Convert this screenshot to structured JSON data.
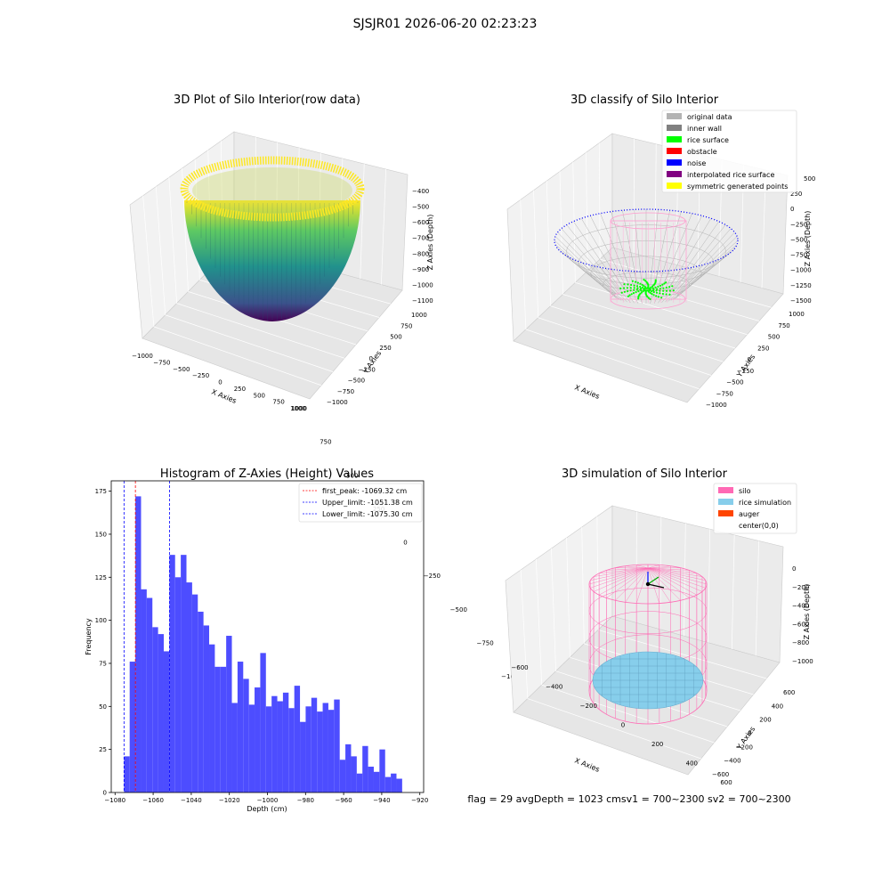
{
  "figure": {
    "suptitle": "SJSJR01 2026-06-20 02:23:23",
    "footer": "flag = 29  avgDepth = 1023 cmsv1 = 700~2300  sv2 = 700~2300"
  },
  "chart_data": [
    {
      "type": "surface3d",
      "title": "3D Plot of Silo Interior(row data)",
      "xlabel": "X Axies",
      "ylabel": "Y Axies",
      "zlabel": "Z Axies (Depth)",
      "xticks": [
        "−1000",
        "−750",
        "−500",
        "−250",
        "0",
        "250",
        "500",
        "750",
        "1000"
      ],
      "yticks": [
        "−1000",
        "−750",
        "−500",
        "−250",
        "0",
        "250",
        "500",
        "750",
        "1000"
      ],
      "zticks": [
        "−400",
        "−500",
        "−600",
        "−700",
        "−800",
        "−900",
        "−1000",
        "−1100"
      ],
      "xlim": [
        -1000,
        1000
      ],
      "ylim": [
        -1000,
        1000
      ],
      "zlim": [
        -1100,
        -400
      ],
      "colormap": "viridis",
      "colors": [
        "#fde725",
        "#5ec962",
        "#21918c",
        "#3b528b",
        "#440154"
      ]
    },
    {
      "type": "scatter3d",
      "title": "3D classify of Silo Interior",
      "xlabel": "X Axies",
      "ylabel": "Y Axies",
      "zlabel": "Z Axies (Depth)",
      "xticks": [
        "−1000",
        "−750",
        "−500",
        "−250",
        "0",
        "250",
        "500",
        "750",
        "1000"
      ],
      "yticks": [
        "−1000",
        "−750",
        "−500",
        "−250",
        "0",
        "250",
        "500",
        "750",
        "1000"
      ],
      "zticks": [
        "250",
        "0",
        "−250",
        "−500",
        "−750",
        "−1000",
        "−1250",
        "−1500"
      ],
      "ztop_partial": "500",
      "legend": {
        "position": "upper-right",
        "entries": [
          {
            "label": "original data",
            "color": "#b3b3b3"
          },
          {
            "label": "inner wall",
            "color": "#808080"
          },
          {
            "label": "rice surface",
            "color": "#00ff00"
          },
          {
            "label": "obstacle",
            "color": "#ff0000"
          },
          {
            "label": "noise",
            "color": "#0000ff"
          },
          {
            "label": "interpolated rice surface",
            "color": "#800080"
          },
          {
            "label": "symmetric generated points",
            "color": "#ffff00"
          }
        ]
      }
    },
    {
      "type": "bar",
      "title": "Histogram of Z-Axies (Height) Values",
      "xlabel": "Depth (cm)",
      "ylabel": "Frequency",
      "xlim": [
        -1082,
        -918
      ],
      "ylim": [
        0,
        181
      ],
      "xticks": [
        -1080,
        -1060,
        -1040,
        -1020,
        -1000,
        -980,
        -960,
        -940,
        -920
      ],
      "xtick_labels": [
        "−1080",
        "−1060",
        "−1040",
        "−1020",
        "−1000",
        "−980",
        "−960",
        "−940",
        "−920"
      ],
      "yticks": [
        0,
        25,
        50,
        75,
        100,
        125,
        150,
        175
      ],
      "bin_start": -1075.3,
      "bin_width": 2.98,
      "bar_color": "#4d4dff",
      "values": [
        21,
        76,
        172,
        118,
        113,
        96,
        92,
        82,
        138,
        125,
        138,
        122,
        115,
        105,
        97,
        86,
        73,
        73,
        91,
        52,
        76,
        66,
        51,
        61,
        81,
        50,
        56,
        53,
        58,
        49,
        62,
        41,
        50,
        55,
        47,
        52,
        48,
        54,
        19,
        28,
        21,
        11,
        27,
        15,
        12,
        25,
        9,
        11,
        8
      ],
      "vlines": [
        {
          "label": "first_peak: -1069.32 cm",
          "x": -1069.32,
          "color": "#ff0000"
        },
        {
          "label": "Upper_limit: -1051.38 cm",
          "x": -1051.38,
          "color": "#0000ff"
        },
        {
          "label": "Lower_limit: -1075.30 cm",
          "x": -1075.3,
          "color": "#0000ff"
        }
      ],
      "legend": {
        "position": "upper-right"
      }
    },
    {
      "type": "wireframe3d",
      "title": "3D simulation of Silo Interior",
      "xlabel": "X Axies",
      "ylabel": "Y Axies",
      "zlabel": "Z Axies (Depth)",
      "xticks": [
        "−600",
        "−400",
        "−200",
        "0",
        "200",
        "400",
        "600"
      ],
      "yticks": [
        "−600",
        "−400",
        "−200",
        "0",
        "200",
        "400",
        "600"
      ],
      "zticks": [
        "0",
        "−200",
        "−400",
        "−600",
        "−800",
        "−1000"
      ],
      "legend": {
        "position": "upper-right",
        "entries": [
          {
            "label": "silo",
            "color": "#ff69b4"
          },
          {
            "label": "rice simulation",
            "color": "#87ceeb"
          },
          {
            "label": "auger",
            "color": "#ff4500"
          },
          {
            "label": "center(0,0)",
            "color": "#ffffff"
          }
        ]
      }
    }
  ]
}
